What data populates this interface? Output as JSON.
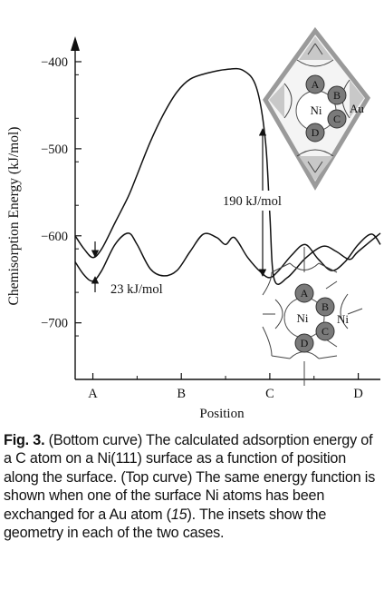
{
  "chart_data": {
    "type": "line",
    "xlabel": "Position",
    "ylabel": "Chemisorption Energy (kJ/mol)",
    "x_tick_labels": [
      "A",
      "B",
      "C",
      "D"
    ],
    "x_ticks": [
      1,
      2,
      3,
      4
    ],
    "xlim": [
      0.8,
      4.25
    ],
    "y_ticks": [
      -400,
      -500,
      -600,
      -700
    ],
    "y_tick_labels": [
      "−400",
      "−500",
      "−600",
      "−700"
    ],
    "ylim": [
      -765,
      -375
    ],
    "series": [
      {
        "x": [
          0.8,
          0.9,
          1.0,
          1.1,
          1.25,
          1.4,
          1.5,
          1.65,
          1.8,
          1.95,
          2.1,
          2.3,
          2.5,
          2.7,
          2.85,
          2.95,
          3.0,
          3.05,
          3.2,
          3.4,
          3.6,
          3.75,
          3.9,
          4.0,
          4.25
        ],
        "values": [
          -600,
          -615,
          -625,
          -615,
          -585,
          -555,
          -530,
          -492,
          -460,
          -435,
          -420,
          -413,
          -409,
          -410,
          -430,
          -490,
          -575,
          -650,
          -648,
          -626,
          -612,
          -618,
          -627,
          -618,
          -597
        ]
      },
      {
        "x": [
          0.8,
          0.9,
          1.0,
          1.1,
          1.25,
          1.4,
          1.5,
          1.65,
          1.8,
          1.95,
          2.1,
          2.25,
          2.4,
          2.5,
          2.6,
          2.75,
          2.9,
          3.0,
          3.1,
          3.25,
          3.4,
          3.55,
          3.7,
          3.85,
          4.0,
          4.15,
          4.25
        ],
        "values": [
          -630,
          -645,
          -652,
          -640,
          -610,
          -597,
          -610,
          -638,
          -646,
          -640,
          -618,
          -598,
          -602,
          -610,
          -602,
          -625,
          -642,
          -648,
          -640,
          -622,
          -610,
          -627,
          -640,
          -630,
          -610,
          -598,
          -610
        ]
      }
    ],
    "annotations": [
      "190 kJ/mol",
      "23 kJ/mol"
    ]
  },
  "inset_top": {
    "atoms": [
      "A",
      "B",
      "C",
      "D"
    ],
    "center_label": "Ni",
    "side_label": "Au"
  },
  "inset_bottom": {
    "atoms": [
      "A",
      "B",
      "C",
      "D"
    ],
    "center_label": "Ni",
    "side_label": "Ni"
  },
  "caption": {
    "fig_label": "Fig. 3.",
    "text_1": " (Bottom curve) The calculated adsorption energy of a C atom on a Ni(111) surface as a function of position along the surface. (Top curve) The same energy function is shown when one of the surface Ni atoms has been exchanged for a Au atom (",
    "ref": "15",
    "text_2": "). The insets show the geometry in each of the two cases."
  }
}
